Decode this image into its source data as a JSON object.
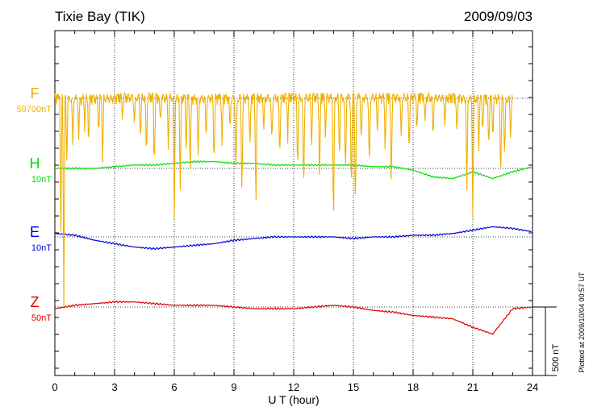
{
  "header": {
    "station": "Tixie Bay (TIK)",
    "date": "2009/09/03"
  },
  "plotted_note": "Plotted at 2009/10/04 00:57 UT",
  "scale_bar_label": "500 nT",
  "chart_data": {
    "type": "line",
    "xlabel": "U T (hour)",
    "xlim": [
      0,
      24
    ],
    "xticks": [
      "0",
      "3",
      "6",
      "9",
      "12",
      "15",
      "18",
      "21",
      "24"
    ],
    "grid": true,
    "channels": [
      {
        "name": "F",
        "scale": "59700nT",
        "color": "#f0b000"
      },
      {
        "name": "H",
        "scale": "10nT",
        "color": "#00e000"
      },
      {
        "name": "E",
        "scale": "10nT",
        "color": "#0000dd"
      },
      {
        "name": "Z",
        "scale": "50nT",
        "color": "#dd0000"
      }
    ],
    "series": [
      {
        "name": "H",
        "x": [
          0,
          1,
          2,
          3,
          4,
          5,
          6,
          7,
          8,
          9,
          10,
          11,
          12,
          13,
          14,
          15,
          16,
          17,
          18,
          19,
          20,
          21,
          22,
          23,
          24
        ],
        "y": [
          0,
          0,
          0,
          0.05,
          0.1,
          0.1,
          0.15,
          0.2,
          0.2,
          0.15,
          0.15,
          0.1,
          0.1,
          0.1,
          0.1,
          0.1,
          0.05,
          0.05,
          -0.05,
          -0.25,
          -0.3,
          -0.1,
          -0.3,
          -0.1,
          0.05
        ]
      },
      {
        "name": "E",
        "x": [
          0,
          1,
          2,
          3,
          4,
          5,
          6,
          7,
          8,
          9,
          10,
          11,
          12,
          13,
          14,
          15,
          16,
          17,
          18,
          19,
          20,
          21,
          22,
          23,
          24
        ],
        "y": [
          0.1,
          0.05,
          -0.1,
          -0.2,
          -0.3,
          -0.35,
          -0.3,
          -0.25,
          -0.2,
          -0.1,
          -0.05,
          0,
          0,
          0,
          0,
          -0.05,
          0,
          0,
          0.05,
          0.05,
          0.1,
          0.2,
          0.3,
          0.25,
          0.15
        ]
      },
      {
        "name": "Z",
        "x": [
          0,
          1,
          2,
          3,
          4,
          5,
          6,
          7,
          8,
          9,
          10,
          11,
          12,
          13,
          14,
          15,
          16,
          17,
          18,
          19,
          20,
          21,
          22,
          23,
          24
        ],
        "y": [
          -0.05,
          0.05,
          0.1,
          0.15,
          0.15,
          0.1,
          0.05,
          0.05,
          0.05,
          0,
          -0.05,
          -0.05,
          -0.05,
          0,
          0.05,
          0,
          -0.1,
          -0.15,
          -0.25,
          -0.3,
          -0.35,
          -0.6,
          -0.8,
          -0.05,
          0
        ]
      },
      {
        "name": "F",
        "x": [
          0,
          1,
          2,
          3,
          4,
          5,
          6,
          7,
          8,
          9,
          10,
          11,
          12,
          13,
          14,
          15,
          16,
          17,
          18,
          19,
          20,
          21,
          22,
          23
        ],
        "y": [
          0,
          -0.1,
          -0.1,
          0,
          0.1,
          0.1,
          0,
          -0.1,
          0,
          0,
          0,
          0,
          0.1,
          0.1,
          0.1,
          0.1,
          0.1,
          0.1,
          0.1,
          0.05,
          0,
          -0.1,
          -0.1,
          -0.1
        ],
        "dips": [
          [
            0.3,
            40
          ],
          [
            0.45,
            60
          ],
          [
            0.6,
            18
          ],
          [
            0.9,
            14
          ],
          [
            1.2,
            12
          ],
          [
            1.5,
            8
          ],
          [
            1.7,
            14
          ],
          [
            2.2,
            10
          ],
          [
            2.4,
            18
          ],
          [
            3.4,
            6
          ],
          [
            4.0,
            8
          ],
          [
            4.3,
            12
          ],
          [
            4.6,
            18
          ],
          [
            5.0,
            22
          ],
          [
            5.3,
            8
          ],
          [
            5.7,
            14
          ],
          [
            6.0,
            36
          ],
          [
            6.3,
            28
          ],
          [
            6.6,
            16
          ],
          [
            6.8,
            24
          ],
          [
            7.2,
            18
          ],
          [
            7.6,
            12
          ],
          [
            8.0,
            20
          ],
          [
            8.4,
            14
          ],
          [
            8.8,
            10
          ],
          [
            9.1,
            24
          ],
          [
            9.4,
            30
          ],
          [
            9.8,
            16
          ],
          [
            10.1,
            34
          ],
          [
            10.5,
            10
          ],
          [
            10.9,
            14
          ],
          [
            11.3,
            18
          ],
          [
            11.7,
            12
          ],
          [
            12.2,
            22
          ],
          [
            12.5,
            28
          ],
          [
            12.9,
            14
          ],
          [
            13.3,
            26
          ],
          [
            13.6,
            12
          ],
          [
            14.0,
            40
          ],
          [
            14.3,
            18
          ],
          [
            14.6,
            24
          ],
          [
            14.9,
            30
          ],
          [
            15.1,
            36
          ],
          [
            15.4,
            14
          ],
          [
            15.8,
            22
          ],
          [
            16.2,
            10
          ],
          [
            16.6,
            16
          ],
          [
            16.9,
            28
          ],
          [
            17.4,
            12
          ],
          [
            17.8,
            16
          ],
          [
            18.2,
            10
          ],
          [
            18.6,
            8
          ],
          [
            19.0,
            12
          ],
          [
            19.6,
            8
          ],
          [
            20.2,
            12
          ],
          [
            20.7,
            28
          ],
          [
            21.0,
            34
          ],
          [
            21.3,
            14
          ],
          [
            21.5,
            10
          ],
          [
            21.8,
            16
          ],
          [
            22.0,
            12
          ],
          [
            22.4,
            24
          ],
          [
            22.6,
            18
          ],
          [
            22.9,
            12
          ]
        ]
      }
    ]
  }
}
